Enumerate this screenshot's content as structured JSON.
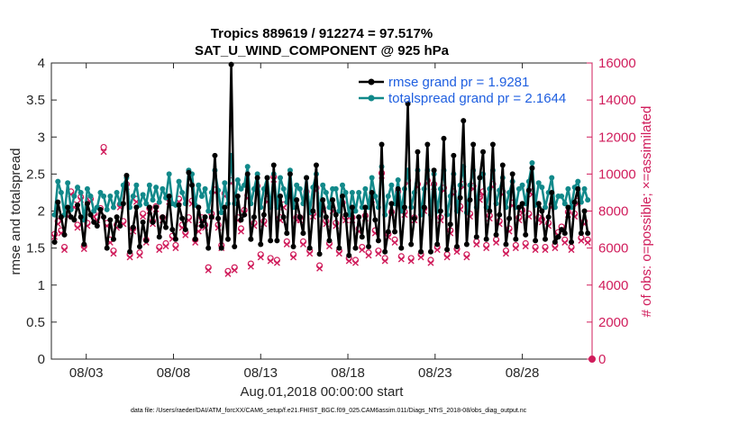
{
  "chart_data": {
    "type": "line",
    "title_line1": "Tropics 889619 / 912274 = 97.517%",
    "title_line2": "SAT_U_WIND_COMPONENT @ 925 hPa",
    "xlabel": "Aug.01,2018 00:00:00 start",
    "ylabel_left": "rmse and totalspread",
    "ylabel_right": "# of obs: o=possible; ×=assimilated",
    "y_left_lim": [
      0,
      4
    ],
    "y_right_lim": [
      0,
      16000
    ],
    "y_left_ticks": [
      "0",
      "0.5",
      "1",
      "1.5",
      "2",
      "2.5",
      "3",
      "3.5",
      "4"
    ],
    "y_right_ticks": [
      "0",
      "2000",
      "4000",
      "6000",
      "8000",
      "10000",
      "12000",
      "14000",
      "16000"
    ],
    "x_tick_labels": [
      "08/03",
      "08/08",
      "08/13",
      "08/18",
      "08/23",
      "08/28"
    ],
    "x_tick_days": [
      3,
      8,
      13,
      18,
      23,
      28
    ],
    "x_range_days": [
      1.0,
      32.0
    ],
    "footnote": "data file: /Users/raeder/DAI/ATM_forcXX/CAM6_setup/f.e21.FHIST_BGC.f09_025.CAM6assim.011/Diags_NTrS_2018-08/obs_diag_output.nc",
    "colors": {
      "rmse": "#000000",
      "spread": "#11898a",
      "obs": "#d01c5b",
      "legend_text": "#1f5fe0"
    },
    "series": [
      {
        "name": "rmse grand pr = 1.9281",
        "key": "rmse",
        "values": [
          1.58,
          2.12,
          1.92,
          1.68,
          2.05,
          1.92,
          1.88,
          2.08,
          1.92,
          1.55,
          2.1,
          1.95,
          1.85,
          1.8,
          2.02,
          1.92,
          1.5,
          1.88,
          1.62,
          1.92,
          1.8,
          2.1,
          2.48,
          1.45,
          1.78,
          2.05,
          1.52,
          1.85,
          1.6,
          2.05,
          1.85,
          2.05,
          1.65,
          1.92,
          1.78,
          2.2,
          1.75,
          1.62,
          2.08,
          1.9,
          1.75,
          2.52,
          2.35,
          1.62,
          2.05,
          1.8,
          1.92,
          1.5,
          1.92,
          2.75,
          1.9,
          1.5,
          2.05,
          1.62,
          3.98,
          1.52,
          2.2,
          1.88,
          1.95,
          2.5,
          1.62,
          1.92,
          2.45,
          1.55,
          1.95,
          2.45,
          1.6,
          2.62,
          1.6,
          2.2,
          1.92,
          1.7,
          2.5,
          1.52,
          2.15,
          1.92,
          1.7,
          2.45,
          1.5,
          2.0,
          2.62,
          1.42,
          2.15,
          1.92,
          1.6,
          2.15,
          1.95,
          1.5,
          2.2,
          1.95,
          1.4,
          2.05,
          1.5,
          1.92,
          1.65,
          2.05,
          1.52,
          2.25,
          1.88,
          1.6,
          2.9,
          1.45,
          1.72,
          2.1,
          1.72,
          2.3,
          1.5,
          2.05,
          3.45,
          1.55,
          1.9,
          2.8,
          1.45,
          2.05,
          2.9,
          1.45,
          2.55,
          1.55,
          2.0,
          2.98,
          1.48,
          1.82,
          2.75,
          1.52,
          2.18,
          3.22,
          1.55,
          2.15,
          2.9,
          1.65,
          2.45,
          2.8,
          1.62,
          2.0,
          2.9,
          1.68,
          1.95,
          2.62,
          1.55,
          1.9,
          2.5,
          1.62,
          2.05,
          2.1,
          1.68,
          2.28,
          2.58,
          1.6,
          2.1,
          2.0,
          1.62,
          1.92,
          2.25,
          1.58,
          1.65,
          1.75,
          1.7,
          2.05,
          1.58,
          2.12,
          2.3,
          1.7,
          2.0,
          1.7
        ]
      },
      {
        "name": "totalspread grand pr = 2.1644",
        "key": "spread",
        "values": [
          1.95,
          2.4,
          2.25,
          1.95,
          2.38,
          2.02,
          2.2,
          2.32,
          2.25,
          1.88,
          2.3,
          2.2,
          2.0,
          2.05,
          2.25,
          2.2,
          2.02,
          2.2,
          2.05,
          2.25,
          2.1,
          2.35,
          2.45,
          2.05,
          2.2,
          2.35,
          2.08,
          2.22,
          2.1,
          2.35,
          2.15,
          2.32,
          2.12,
          2.3,
          2.18,
          2.5,
          2.1,
          2.08,
          2.4,
          2.25,
          2.1,
          2.55,
          2.5,
          2.08,
          2.35,
          2.2,
          2.3,
          2.0,
          2.25,
          2.55,
          2.28,
          1.98,
          2.38,
          2.1,
          2.75,
          2.1,
          2.42,
          2.3,
          2.35,
          2.6,
          2.1,
          2.3,
          2.5,
          2.05,
          2.3,
          2.45,
          2.05,
          2.5,
          2.05,
          2.45,
          2.3,
          2.12,
          2.55,
          2.05,
          2.35,
          2.3,
          2.1,
          2.45,
          1.98,
          2.32,
          2.5,
          1.95,
          2.35,
          2.25,
          2.05,
          2.3,
          2.3,
          2.0,
          2.35,
          2.25,
          1.95,
          2.25,
          2.0,
          2.25,
          2.05,
          2.3,
          2.05,
          2.45,
          2.2,
          2.05,
          2.6,
          1.95,
          2.2,
          2.35,
          2.1,
          2.42,
          2.0,
          2.3,
          2.55,
          2.05,
          2.25,
          2.55,
          1.95,
          2.3,
          2.55,
          1.95,
          2.5,
          2.0,
          2.3,
          2.55,
          1.95,
          2.2,
          2.5,
          2.0,
          2.35,
          2.6,
          1.98,
          2.35,
          2.55,
          2.05,
          2.45,
          2.5,
          2.05,
          2.3,
          2.55,
          2.1,
          2.28,
          2.45,
          2.05,
          2.25,
          2.4,
          2.05,
          2.3,
          2.35,
          2.1,
          2.4,
          2.65,
          2.08,
          2.38,
          2.32,
          2.05,
          2.25,
          2.45,
          2.05,
          2.2,
          2.2,
          2.1,
          2.3,
          2.05,
          2.32,
          2.4,
          2.12,
          2.3,
          2.15
        ]
      },
      {
        "name": "# obs possible",
        "key": "possible",
        "values": [
          6750,
          7450,
          6950,
          6050,
          7850,
          9050,
          8350,
          7250,
          8750,
          6100,
          7350,
          8650,
          7850,
          7650,
          8150,
          11450,
          7350,
          6450,
          5850,
          7250,
          8350,
          7450,
          9450,
          5650,
          7050,
          8650,
          5750,
          7850,
          6450,
          8150,
          7450,
          8250,
          6050,
          7650,
          6250,
          8650,
          6650,
          6150,
          8650,
          7250,
          6850,
          7650,
          8550,
          6450,
          7050,
          7650,
          7250,
          4950,
          7850,
          9150,
          7250,
          6150,
          8950,
          4750,
          9650,
          4950,
          7650,
          7050,
          8050,
          8850,
          5150,
          7350,
          9350,
          5650,
          7450,
          8650,
          5450,
          9850,
          5350,
          7650,
          8350,
          6350,
          8850,
          5650,
          7650,
          7650,
          6350,
          9050,
          5850,
          7850,
          9250,
          5050,
          8150,
          7450,
          6250,
          8150,
          7350,
          5850,
          8450,
          7650,
          5450,
          7650,
          5350,
          7050,
          6050,
          7750,
          5750,
          8750,
          6950,
          5850,
          10050,
          5450,
          6750,
          7950,
          6450,
          9050,
          5550,
          7950,
          9650,
          5450,
          7650,
          9450,
          5650,
          8150,
          9650,
          5350,
          9450,
          6050,
          7650,
          9250,
          5650,
          6950,
          9050,
          5950,
          8250,
          9450,
          5650,
          7850,
          9350,
          6350,
          8750,
          9050,
          6150,
          7750,
          9450,
          6450,
          7450,
          9050,
          5850,
          7050,
          8450,
          6150,
          7650,
          8050,
          6250,
          7850,
          9050,
          6050,
          7650,
          7550,
          6050,
          7350,
          8350,
          6150,
          6850,
          7150,
          6450,
          7950,
          6050,
          7850,
          8550,
          6550,
          7450,
          6450
        ]
      },
      {
        "name": "# obs assimilated",
        "key": "assimilated",
        "values": [
          6600,
          7300,
          6800,
          5900,
          7700,
          8900,
          8200,
          7100,
          8600,
          5950,
          7200,
          8500,
          7700,
          7500,
          8000,
          11200,
          7200,
          6300,
          5700,
          7100,
          8200,
          7300,
          9300,
          5500,
          6900,
          8500,
          5600,
          7700,
          6300,
          8000,
          7300,
          8100,
          5900,
          7500,
          6100,
          8500,
          6500,
          6000,
          8500,
          7100,
          6700,
          7500,
          8400,
          6300,
          6900,
          7500,
          7100,
          4800,
          7700,
          9000,
          7100,
          6000,
          8800,
          4600,
          9500,
          4800,
          7500,
          6900,
          7900,
          8700,
          5000,
          7200,
          9200,
          5500,
          7300,
          8500,
          5300,
          9700,
          5200,
          7500,
          8200,
          6200,
          8700,
          5500,
          7500,
          7500,
          6200,
          8900,
          5700,
          7700,
          9100,
          4900,
          8000,
          7300,
          6100,
          8000,
          7200,
          5700,
          8300,
          7500,
          5300,
          7500,
          5200,
          6900,
          5900,
          7600,
          5600,
          8600,
          6800,
          5700,
          9900,
          5300,
          6600,
          7800,
          6300,
          8900,
          5400,
          7800,
          9500,
          5300,
          7500,
          9300,
          5500,
          8000,
          9500,
          5200,
          9300,
          5900,
          7500,
          9100,
          5500,
          6800,
          8900,
          5800,
          8100,
          9300,
          5500,
          7700,
          9200,
          6200,
          8600,
          8900,
          6000,
          7600,
          9300,
          6300,
          7300,
          8900,
          5700,
          6900,
          8300,
          6000,
          7500,
          7900,
          6100,
          7700,
          8900,
          5900,
          7500,
          7400,
          5900,
          7200,
          8200,
          6000,
          6700,
          7000,
          6300,
          7800,
          5900,
          7700,
          8400,
          6400,
          7300,
          6300
        ]
      }
    ]
  }
}
